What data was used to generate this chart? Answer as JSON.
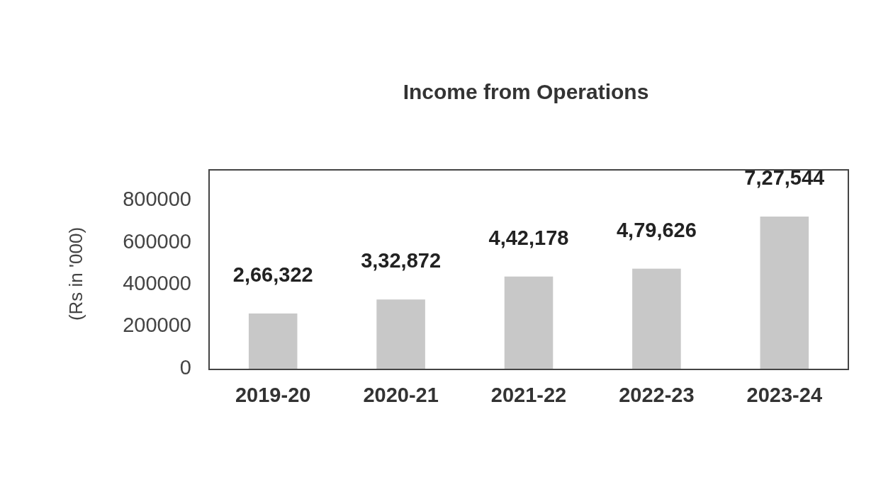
{
  "chart_data": {
    "type": "bar",
    "title": "Income from Operations",
    "ylabel": "(Rs in '000)",
    "categories": [
      "2019-20",
      "2020-21",
      "2021-22",
      "2022-23",
      "2023-24"
    ],
    "values": [
      266322,
      332872,
      442178,
      479626,
      727544
    ],
    "value_labels": [
      "2,66,322",
      "3,32,872",
      "4,42,178",
      "4,79,626",
      "7,27,544"
    ],
    "color": "#c8c8c8",
    "ylim": [
      0,
      950000
    ],
    "yticks": [
      0,
      200000,
      400000,
      600000,
      800000
    ],
    "grid": false
  }
}
